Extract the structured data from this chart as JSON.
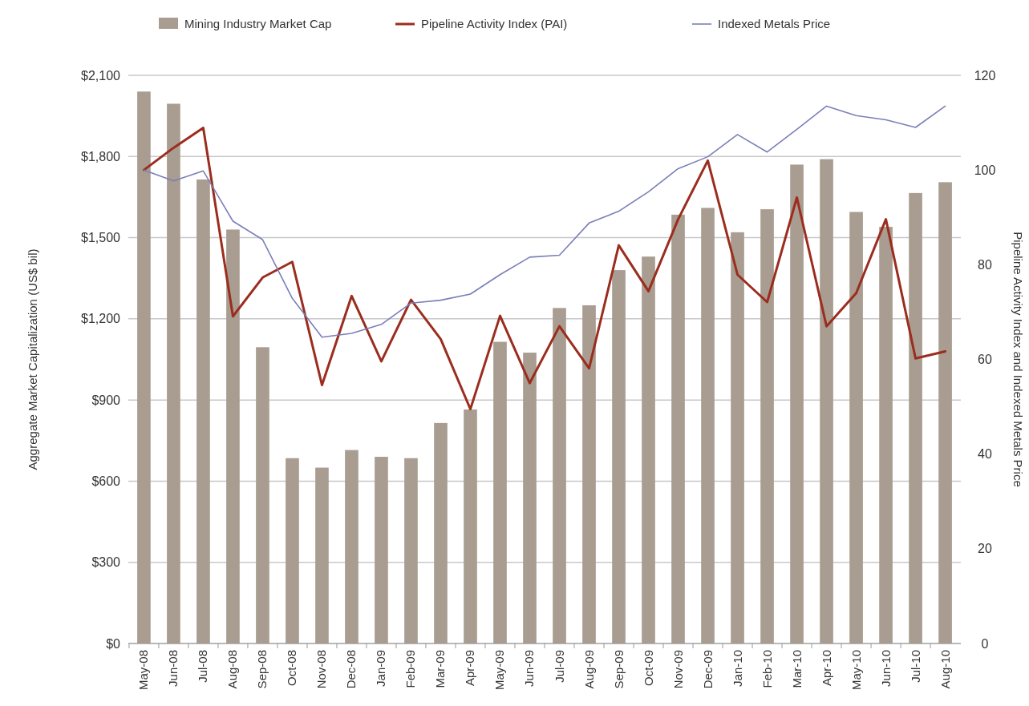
{
  "chart_data": {
    "type": "bar",
    "ylabel": "Aggregate Market Capitalization (US$ bil)",
    "y2label": "Pipeline Activity Index and Indexed Metals Price",
    "categories": [
      "May-08",
      "Jun-08",
      "Jul-08",
      "Aug-08",
      "Sep-08",
      "Oct-08",
      "Nov-08",
      "Dec-08",
      "Jan-09",
      "Feb-09",
      "Mar-09",
      "Apr-09",
      "May-09",
      "Jun-09",
      "Jul-09",
      "Aug-09",
      "Sep-09",
      "Oct-09",
      "Nov-09",
      "Dec-09",
      "Jan-10",
      "Feb-10",
      "Mar-10",
      "Apr-10",
      "May-10",
      "Jun-10",
      "Jul-10",
      "Aug-10"
    ],
    "series": [
      {
        "name": "Mining Industry Market Cap",
        "color": "#a89d90",
        "values": [
          2040,
          1995,
          1715,
          1530,
          1095,
          685,
          650,
          715,
          690,
          685,
          815,
          865,
          1115,
          1075,
          1240,
          1250,
          1380,
          1430,
          1585,
          1610,
          1520,
          1605,
          1770,
          1790,
          1595,
          1540,
          1665,
          1705
        ]
      },
      {
        "name": "Pipeline Activity Index (PAI)",
        "type": "line",
        "axis": "y2",
        "color": "#9b2d1f",
        "values": [
          100,
          104.7,
          108.9,
          69.1,
          77.3,
          80.6,
          54.6,
          73.4,
          59.6,
          72.6,
          64.3,
          49.5,
          69.2,
          55,
          67,
          58.1,
          84.1,
          74.4,
          89.6,
          102,
          77.9,
          72.1,
          94.2,
          67,
          74,
          89.6,
          60.2,
          61.7
        ]
      },
      {
        "name": "Indexed Metals Price",
        "type": "line",
        "axis": "y2",
        "color": "#7a7fb8",
        "values": [
          100,
          97.7,
          99.8,
          89.2,
          85.3,
          72.9,
          64.7,
          65.5,
          67.4,
          71.9,
          72.5,
          73.8,
          77.9,
          81.6,
          82,
          88.8,
          91.3,
          95.4,
          100.3,
          102.8,
          107.5,
          103.8,
          108.6,
          113.5,
          111.5,
          110.6,
          109,
          113.5
        ]
      }
    ],
    "ylim": [
      0,
      2100
    ],
    "yticks": [
      {
        "value": 0,
        "label": "$0"
      },
      {
        "value": 300,
        "label": "$300"
      },
      {
        "value": 600,
        "label": "$600"
      },
      {
        "value": 900,
        "label": "$900"
      },
      {
        "value": 1200,
        "label": "$1,200"
      },
      {
        "value": 1500,
        "label": "$1,500"
      },
      {
        "value": 1800,
        "label": "$1,800"
      },
      {
        "value": 2100,
        "label": "$2,100"
      }
    ],
    "y2lim": [
      0,
      120
    ],
    "y2ticks": [
      0,
      20,
      40,
      60,
      80,
      100,
      120
    ],
    "grid": "y",
    "legend": "top"
  }
}
